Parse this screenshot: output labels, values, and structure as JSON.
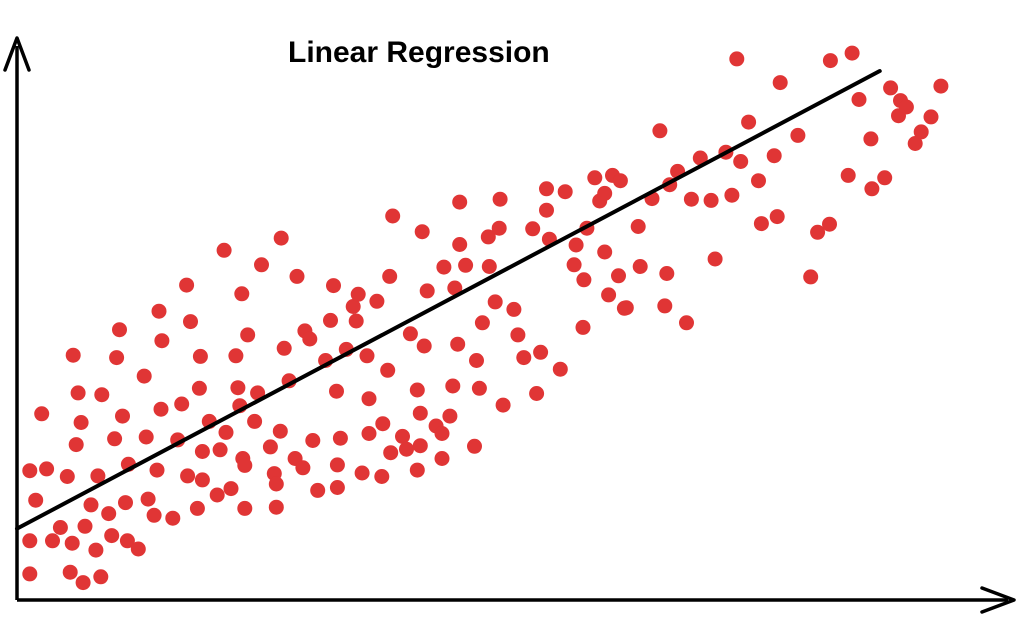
{
  "chart_data": {
    "type": "scatter",
    "title": "Linear Regression",
    "xlabel": "",
    "ylabel": "",
    "xlim": [
      0,
      100
    ],
    "ylim": [
      0,
      100
    ],
    "grid": false,
    "legend": "none",
    "colors": {
      "points": "#e03535",
      "line": "#000000",
      "axes": "#000000"
    },
    "regression_line": {
      "x": [
        0,
        87.5
      ],
      "y": [
        12.3,
        91.2
      ]
    },
    "points": [
      [
        1.3,
        4.5
      ],
      [
        1.3,
        10.2
      ],
      [
        1.3,
        22.3
      ],
      [
        1.9,
        17.2
      ],
      [
        2.5,
        32.1
      ],
      [
        3.0,
        22.6
      ],
      [
        3.6,
        10.2
      ],
      [
        4.4,
        12.5
      ],
      [
        5.1,
        21.3
      ],
      [
        5.4,
        4.8
      ],
      [
        5.6,
        9.8
      ],
      [
        5.7,
        42.2
      ],
      [
        6.0,
        26.8
      ],
      [
        6.2,
        35.7
      ],
      [
        6.5,
        30.6
      ],
      [
        6.7,
        3.0
      ],
      [
        6.9,
        12.7
      ],
      [
        7.5,
        16.4
      ],
      [
        8.0,
        8.6
      ],
      [
        8.2,
        21.4
      ],
      [
        8.5,
        4.0
      ],
      [
        8.6,
        35.4
      ],
      [
        9.3,
        14.9
      ],
      [
        9.6,
        11.1
      ],
      [
        9.9,
        27.8
      ],
      [
        10.1,
        41.8
      ],
      [
        10.4,
        46.6
      ],
      [
        10.7,
        31.7
      ],
      [
        11.0,
        16.8
      ],
      [
        11.2,
        10.2
      ],
      [
        11.3,
        23.4
      ],
      [
        12.3,
        8.8
      ],
      [
        12.9,
        38.6
      ],
      [
        13.1,
        28.1
      ],
      [
        13.3,
        17.4
      ],
      [
        13.9,
        14.6
      ],
      [
        14.2,
        22.4
      ],
      [
        14.4,
        49.8
      ],
      [
        14.6,
        32.9
      ],
      [
        14.7,
        44.7
      ],
      [
        15.8,
        14.1
      ],
      [
        16.3,
        27.6
      ],
      [
        16.7,
        33.8
      ],
      [
        17.2,
        54.3
      ],
      [
        17.3,
        21.4
      ],
      [
        17.6,
        48.0
      ],
      [
        18.3,
        15.8
      ],
      [
        18.5,
        36.5
      ],
      [
        18.8,
        25.6
      ],
      [
        18.8,
        20.7
      ],
      [
        18.6,
        42.0
      ],
      [
        19.5,
        30.8
      ],
      [
        20.3,
        18.1
      ],
      [
        20.6,
        25.9
      ],
      [
        21.0,
        60.3
      ],
      [
        21.2,
        28.9
      ],
      [
        21.7,
        19.2
      ],
      [
        22.2,
        42.1
      ],
      [
        22.4,
        36.6
      ],
      [
        22.6,
        33.5
      ],
      [
        22.9,
        24.4
      ],
      [
        22.8,
        52.8
      ],
      [
        23.1,
        15.8
      ],
      [
        23.1,
        23.2
      ],
      [
        23.4,
        45.7
      ],
      [
        24.1,
        30.8
      ],
      [
        24.4,
        35.7
      ],
      [
        24.8,
        57.8
      ],
      [
        25.7,
        26.4
      ],
      [
        26.1,
        21.8
      ],
      [
        26.3,
        16.0
      ],
      [
        26.3,
        20.0
      ],
      [
        26.7,
        29.1
      ],
      [
        26.8,
        62.4
      ],
      [
        27.1,
        43.4
      ],
      [
        27.6,
        37.8
      ],
      [
        28.2,
        24.4
      ],
      [
        28.4,
        55.8
      ],
      [
        29.0,
        22.8
      ],
      [
        29.2,
        46.4
      ],
      [
        29.7,
        45.0
      ],
      [
        30.0,
        27.5
      ],
      [
        30.5,
        18.9
      ],
      [
        31.3,
        41.3
      ],
      [
        31.8,
        48.2
      ],
      [
        32.1,
        54.2
      ],
      [
        32.4,
        36.0
      ],
      [
        32.5,
        19.4
      ],
      [
        32.5,
        23.3
      ],
      [
        32.8,
        27.9
      ],
      [
        33.4,
        43.2
      ],
      [
        34.1,
        50.6
      ],
      [
        34.4,
        48.1
      ],
      [
        34.6,
        52.7
      ],
      [
        35.0,
        21.9
      ],
      [
        35.5,
        42.1
      ],
      [
        35.7,
        28.7
      ],
      [
        35.7,
        34.7
      ],
      [
        36.5,
        51.5
      ],
      [
        37.0,
        21.3
      ],
      [
        37.1,
        30.4
      ],
      [
        37.6,
        39.6
      ],
      [
        37.9,
        25.4
      ],
      [
        38.1,
        66.2
      ],
      [
        37.8,
        55.8
      ],
      [
        39.1,
        28.2
      ],
      [
        39.5,
        26.0
      ],
      [
        39.9,
        45.9
      ],
      [
        40.6,
        22.4
      ],
      [
        40.6,
        36.2
      ],
      [
        40.9,
        32.2
      ],
      [
        40.9,
        26.6
      ],
      [
        41.1,
        63.5
      ],
      [
        41.3,
        43.8
      ],
      [
        41.6,
        53.3
      ],
      [
        42.5,
        30.0
      ],
      [
        43.1,
        24.4
      ],
      [
        43.1,
        28.7
      ],
      [
        43.3,
        57.4
      ],
      [
        43.9,
        31.7
      ],
      [
        44.2,
        36.9
      ],
      [
        44.4,
        53.8
      ],
      [
        44.7,
        44.1
      ],
      [
        44.9,
        61.3
      ],
      [
        44.9,
        68.6
      ],
      [
        45.5,
        57.7
      ],
      [
        46.4,
        26.5
      ],
      [
        46.6,
        41.3
      ],
      [
        46.9,
        36.5
      ],
      [
        47.2,
        47.8
      ],
      [
        47.8,
        62.6
      ],
      [
        47.9,
        57.5
      ],
      [
        48.5,
        51.4
      ],
      [
        48.9,
        64.1
      ],
      [
        49.0,
        69.1
      ],
      [
        49.3,
        33.6
      ],
      [
        50.4,
        50.1
      ],
      [
        50.8,
        45.7
      ],
      [
        51.4,
        41.8
      ],
      [
        52.3,
        64.0
      ],
      [
        52.7,
        35.6
      ],
      [
        53.1,
        42.7
      ],
      [
        53.7,
        70.9
      ],
      [
        53.7,
        67.2
      ],
      [
        54.0,
        62.2
      ],
      [
        55.1,
        39.8
      ],
      [
        55.6,
        70.4
      ],
      [
        56.5,
        57.8
      ],
      [
        56.7,
        61.2
      ],
      [
        57.4,
        47.0
      ],
      [
        57.5,
        55.2
      ],
      [
        57.8,
        64.1
      ],
      [
        58.6,
        72.8
      ],
      [
        59.1,
        68.8
      ],
      [
        59.6,
        70.1
      ],
      [
        59.6,
        60.0
      ],
      [
        60.4,
        73.2
      ],
      [
        60.0,
        52.6
      ],
      [
        61.0,
        55.9
      ],
      [
        61.2,
        72.3
      ],
      [
        61.6,
        50.3
      ],
      [
        61.8,
        50.4
      ],
      [
        63.0,
        64.4
      ],
      [
        63.2,
        57.5
      ],
      [
        64.4,
        69.2
      ],
      [
        65.2,
        80.9
      ],
      [
        65.7,
        50.7
      ],
      [
        65.9,
        56.3
      ],
      [
        66.2,
        71.6
      ],
      [
        67.0,
        73.9
      ],
      [
        67.9,
        47.8
      ],
      [
        68.4,
        69.1
      ],
      [
        69.3,
        76.2
      ],
      [
        70.4,
        68.9
      ],
      [
        70.8,
        58.8
      ],
      [
        71.9,
        77.2
      ],
      [
        72.5,
        69.8
      ],
      [
        73.4,
        75.6
      ],
      [
        74.2,
        82.4
      ],
      [
        75.2,
        72.3
      ],
      [
        75.5,
        64.9
      ],
      [
        76.8,
        76.6
      ],
      [
        77.1,
        66.1
      ],
      [
        77.4,
        89.2
      ],
      [
        79.2,
        80.1
      ],
      [
        80.5,
        55.7
      ],
      [
        81.2,
        63.4
      ],
      [
        82.4,
        64.8
      ],
      [
        84.3,
        73.2
      ],
      [
        84.7,
        94.3
      ],
      [
        85.4,
        86.3
      ],
      [
        86.6,
        79.5
      ],
      [
        86.7,
        70.9
      ],
      [
        88.0,
        72.8
      ],
      [
        88.6,
        88.3
      ],
      [
        89.4,
        83.5
      ],
      [
        89.6,
        86.1
      ],
      [
        90.2,
        85.0
      ],
      [
        91.1,
        78.7
      ],
      [
        91.7,
        80.7
      ],
      [
        92.7,
        83.3
      ],
      [
        93.7,
        88.6
      ],
      [
        73.0,
        93.3
      ],
      [
        82.5,
        93.0
      ]
    ]
  }
}
